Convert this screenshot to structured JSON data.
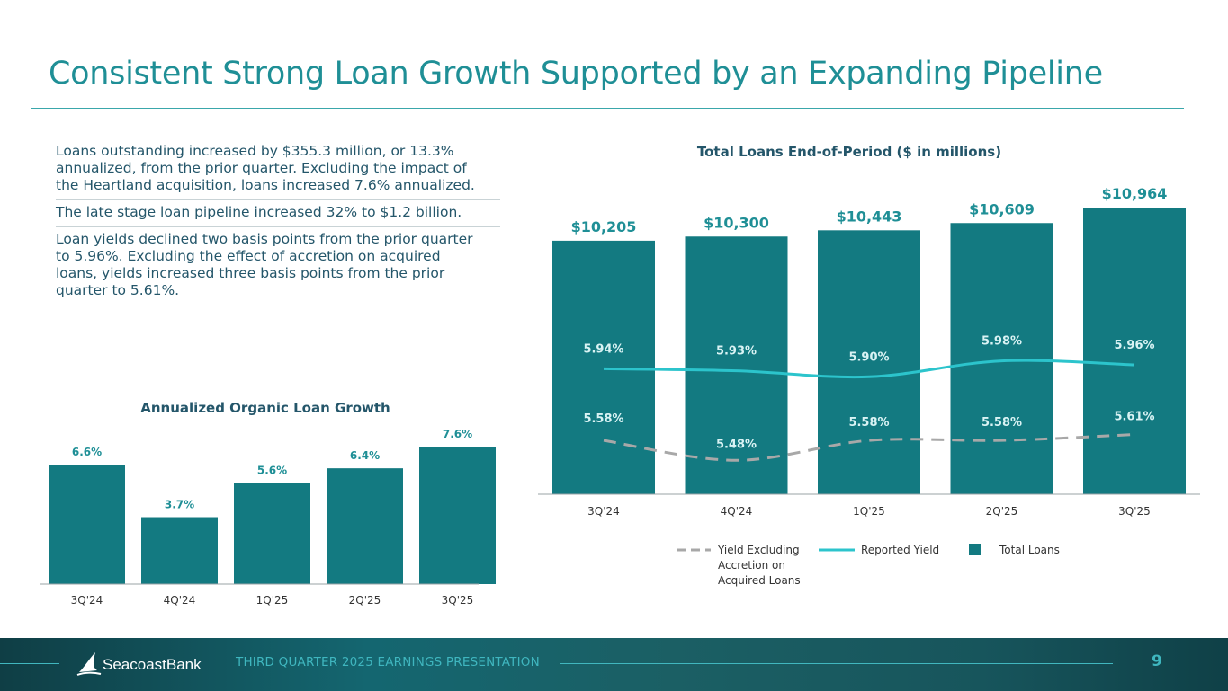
{
  "slide": {
    "title": "Consistent Strong Loan Growth Supported by an Expanding Pipeline",
    "bullets": [
      {
        "lines": [
          "Loans outstanding increased by $355.3 million, or 13.3%",
          "annualized, from the prior quarter. Excluding the impact of",
          "the Heartland acquisition, loans increased 7.6% annualized."
        ]
      },
      {
        "lines": [
          "The late stage loan pipeline increased 32% to $1.2 billion."
        ]
      },
      {
        "lines": [
          "Loan yields declined two basis points from the prior quarter",
          "to 5.96%. Excluding the effect of accretion on acquired",
          "loans, yields increased three basis points from the prior",
          "quarter to 5.61%."
        ]
      }
    ]
  },
  "footer": {
    "brand": "SeacoastBank",
    "presentation": "THIRD QUARTER 2025 EARNINGS PRESENTATION",
    "page_number": "9"
  },
  "colors": {
    "accent": "#1f8f96",
    "bar": "#137a81",
    "reported": "#2cc4cc",
    "excl": "#a8a8a8",
    "label": "#1f8f96"
  },
  "chart_data": [
    {
      "type": "bar",
      "title": "Annualized Organic Loan Growth",
      "categories": [
        "3Q'24",
        "4Q'24",
        "1Q'25",
        "2Q'25",
        "3Q'25"
      ],
      "values": [
        6.6,
        3.7,
        5.6,
        6.4,
        7.6
      ],
      "value_labels": [
        "6.6%",
        "3.7%",
        "5.6%",
        "6.4%",
        "7.6%"
      ],
      "ylim": [
        0,
        7.6
      ]
    },
    {
      "type": "bar",
      "title": "Total Loans End-of-Period ($ in millions)",
      "categories": [
        "3Q'24",
        "4Q'24",
        "1Q'25",
        "2Q'25",
        "3Q'25"
      ],
      "values": [
        10205,
        10300,
        10443,
        10609,
        10964
      ],
      "value_labels": [
        "$10,205",
        "$10,300",
        "$10,443",
        "$10,609",
        "$10,964"
      ],
      "ylim": [
        4400,
        10964
      ],
      "series": [
        {
          "name": "Reported Yield",
          "type": "line",
          "values": [
            5.94,
            5.93,
            5.9,
            5.98,
            5.96
          ],
          "labels": [
            "5.94%",
            "5.93%",
            "5.90%",
            "5.98%",
            "5.96%"
          ]
        },
        {
          "name": "Yield Excluding Accretion on Acquired Loans",
          "type": "line-dashed",
          "values": [
            5.58,
            5.48,
            5.58,
            5.58,
            5.61
          ],
          "labels": [
            "5.58%",
            "5.48%",
            "5.58%",
            "5.58%",
            "5.61%"
          ]
        }
      ],
      "yield_ylim": [
        5.4,
        6.1
      ],
      "legend": {
        "position": "bottom",
        "items": [
          {
            "label_lines": [
              "Yield Excluding",
              "Accretion on",
              "Acquired Loans"
            ],
            "kind": "dash"
          },
          {
            "label_lines": [
              "Reported Yield"
            ],
            "kind": "line"
          },
          {
            "label_lines": [
              "Total Loans"
            ],
            "kind": "box"
          }
        ]
      }
    }
  ]
}
